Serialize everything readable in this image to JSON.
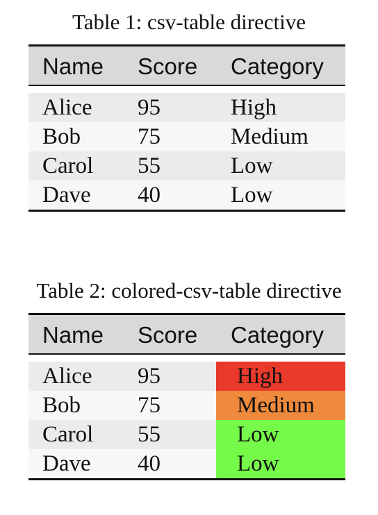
{
  "table1": {
    "caption": "Table 1: csv-table directive",
    "headers": [
      "Name",
      "Score",
      "Category"
    ],
    "rows": [
      {
        "name": "Alice",
        "score": "95",
        "category": "High"
      },
      {
        "name": "Bob",
        "score": "75",
        "category": "Medium"
      },
      {
        "name": "Carol",
        "score": "55",
        "category": "Low"
      },
      {
        "name": "Dave",
        "score": "40",
        "category": "Low"
      }
    ]
  },
  "table2": {
    "caption": "Table 2: colored-csv-table directive",
    "headers": [
      "Name",
      "Score",
      "Category"
    ],
    "rows": [
      {
        "name": "Alice",
        "score": "95",
        "category": "High",
        "color": "#e8392a"
      },
      {
        "name": "Bob",
        "score": "75",
        "category": "Medium",
        "color": "#ef8a3c"
      },
      {
        "name": "Carol",
        "score": "55",
        "category": "Low",
        "color": "#76fa4a"
      },
      {
        "name": "Dave",
        "score": "40",
        "category": "Low",
        "color": "#76fa4a"
      }
    ]
  }
}
